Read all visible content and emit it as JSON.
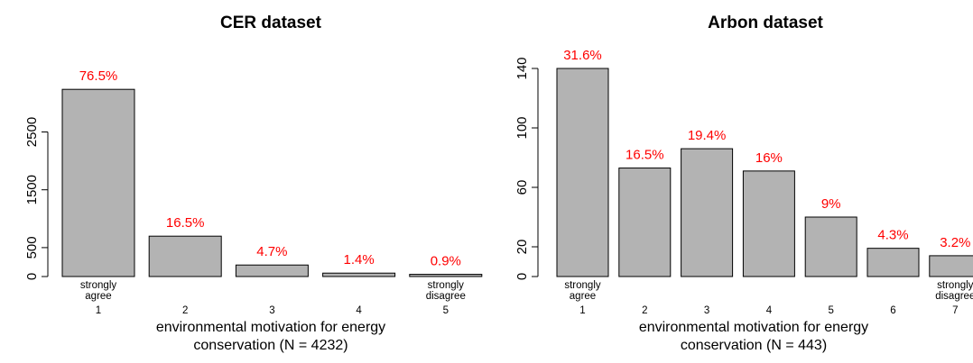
{
  "chart_data": [
    {
      "type": "bar",
      "title": "CER dataset",
      "xlabel": [
        "environmental motivation for energy",
        "conservation (N = 4232)"
      ],
      "ylabel": "",
      "categories": [
        "1",
        "2",
        "3",
        "4",
        "5"
      ],
      "category_labels": [
        [
          "strongly",
          "agree"
        ],
        [],
        [],
        [],
        [
          "strongly",
          "disagree"
        ]
      ],
      "values": [
        3237,
        698,
        199,
        59,
        38
      ],
      "percent_labels": [
        "76.5%",
        "16.5%",
        "4.7%",
        "1.4%",
        "0.9%"
      ],
      "yticks": [
        0,
        500,
        1500,
        2500
      ],
      "ylim": [
        0,
        3300
      ],
      "color": "#b3b3b3",
      "label_color": "#ff0000"
    },
    {
      "type": "bar",
      "title": "Arbon dataset",
      "xlabel": [
        "environmental motivation for energy",
        "conservation (N = 443)"
      ],
      "ylabel": "",
      "categories": [
        "1",
        "2",
        "3",
        "4",
        "5",
        "6",
        "7"
      ],
      "category_labels": [
        [
          "strongly",
          "agree"
        ],
        [],
        [],
        [],
        [],
        [],
        [
          "strongly",
          "disagree"
        ]
      ],
      "values": [
        140,
        73,
        86,
        71,
        40,
        19,
        14
      ],
      "percent_labels": [
        "31.6%",
        "16.5%",
        "19.4%",
        "16%",
        "9%",
        "4.3%",
        "3.2%"
      ],
      "yticks": [
        0,
        20,
        60,
        100,
        140
      ],
      "ylim": [
        0,
        140
      ],
      "color": "#b3b3b3",
      "label_color": "#ff0000"
    }
  ]
}
